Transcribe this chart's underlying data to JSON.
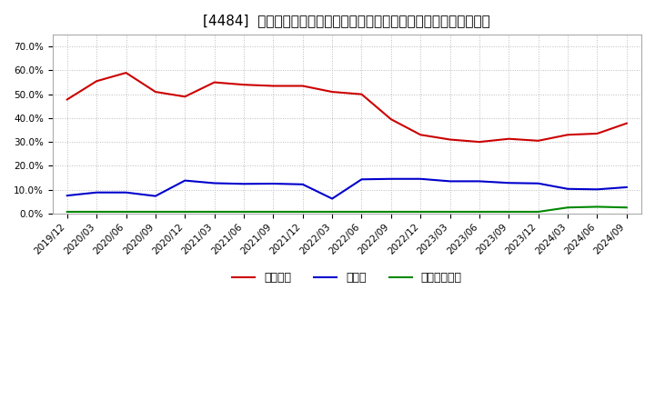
{
  "title": "[4484]  自己資本、のれん、繰延税金資産の総資産に対する比率の推移",
  "x_labels": [
    "2019/12",
    "2020/03",
    "2020/06",
    "2020/09",
    "2020/12",
    "2021/03",
    "2021/06",
    "2021/09",
    "2021/12",
    "2022/03",
    "2022/06",
    "2022/09",
    "2022/12",
    "2023/03",
    "2023/06",
    "2023/09",
    "2023/12",
    "2024/03",
    "2024/06",
    "2024/09"
  ],
  "equity": [
    0.478,
    0.555,
    0.59,
    0.51,
    0.49,
    0.55,
    0.54,
    0.535,
    0.535,
    0.51,
    0.5,
    0.395,
    0.33,
    0.31,
    0.3,
    0.313,
    0.305,
    0.33,
    0.335,
    0.378
  ],
  "goodwill": [
    0.075,
    0.088,
    0.088,
    0.073,
    0.138,
    0.127,
    0.124,
    0.125,
    0.122,
    0.062,
    0.143,
    0.145,
    0.145,
    0.135,
    0.135,
    0.128,
    0.126,
    0.103,
    0.101,
    0.11
  ],
  "deferred_tax": [
    0.007,
    0.007,
    0.007,
    0.007,
    0.007,
    0.007,
    0.007,
    0.007,
    0.007,
    0.007,
    0.007,
    0.007,
    0.007,
    0.007,
    0.007,
    0.007,
    0.007,
    0.025,
    0.028,
    0.025
  ],
  "equity_color": "#cc0000",
  "goodwill_color": "#0000cc",
  "deferred_tax_color": "#008800",
  "equity_label": "自己資本",
  "goodwill_label": "のれん",
  "deferred_tax_label": "繰延税金資産",
  "ylim": [
    0.0,
    0.75
  ],
  "yticks": [
    0.0,
    0.1,
    0.2,
    0.3,
    0.4,
    0.5,
    0.6,
    0.7
  ],
  "background_color": "#ffffff",
  "plot_background_color": "#ffffff",
  "grid_color": "#aaaaaa",
  "title_fontsize": 11,
  "tick_fontsize": 7.5,
  "legend_fontsize": 9
}
